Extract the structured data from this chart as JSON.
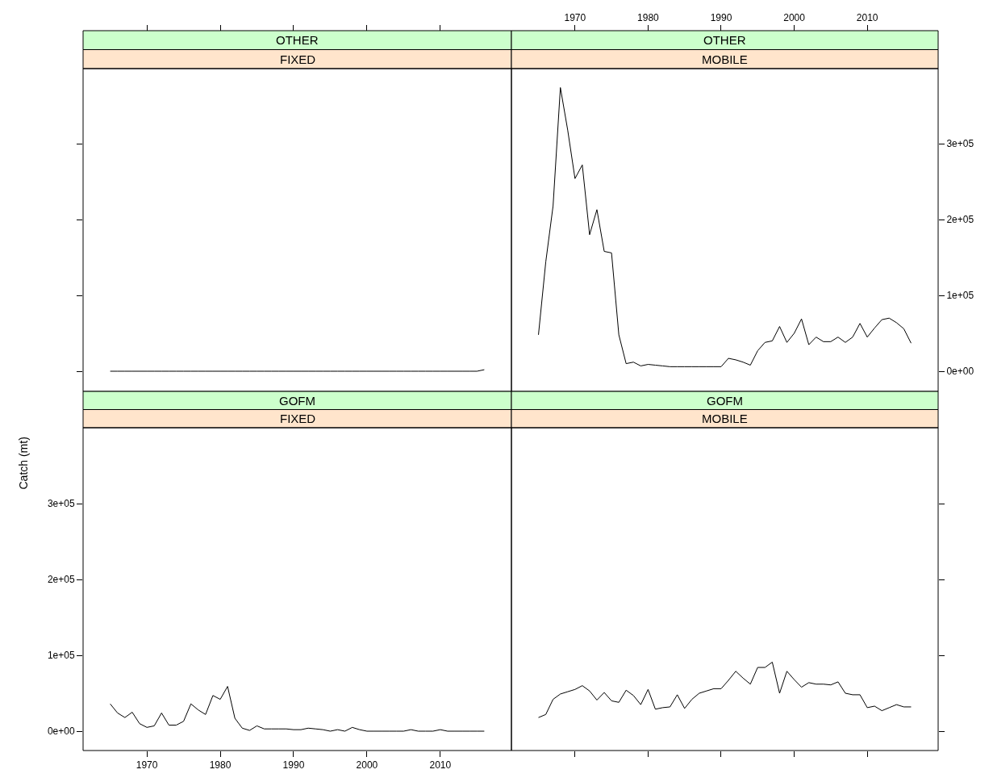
{
  "chart_data": [
    {
      "type": "line",
      "title": "OTHER",
      "subtitle": "FIXED",
      "x": [
        1965,
        1966,
        1967,
        1968,
        1969,
        1970,
        1971,
        1972,
        1973,
        1974,
        1975,
        1976,
        1977,
        1978,
        1979,
        1980,
        1981,
        1982,
        1983,
        1984,
        1985,
        1986,
        1987,
        1988,
        1989,
        1990,
        1991,
        1992,
        1993,
        1994,
        1995,
        1996,
        1997,
        1998,
        1999,
        2000,
        2001,
        2002,
        2003,
        2004,
        2005,
        2006,
        2007,
        2008,
        2009,
        2010,
        2011,
        2012,
        2013,
        2014,
        2015,
        2016
      ],
      "series": [
        {
          "color": "#000000",
          "values": [
            0,
            0,
            0,
            0,
            0,
            0,
            0,
            0,
            0,
            0,
            0,
            0,
            0,
            0,
            0,
            0,
            0,
            0,
            0,
            0,
            0,
            0,
            0,
            0,
            0,
            0,
            0,
            0,
            0,
            0,
            0,
            0,
            0,
            0,
            0,
            0,
            0,
            0,
            0,
            0,
            0,
            0,
            0,
            0,
            0,
            0,
            0,
            0,
            0,
            0,
            0,
            2000
          ]
        }
      ],
      "xlim": [
        1961.3,
        2019.7
      ],
      "ylim": [
        -26600,
        399000
      ],
      "xticks": [
        1970,
        1980,
        1990,
        2000,
        2010
      ],
      "yticks": [
        0,
        100000,
        200000,
        300000
      ],
      "tick_labels": false
    },
    {
      "type": "line",
      "title": "OTHER",
      "subtitle": "MOBILE",
      "x": [
        1965,
        1966,
        1967,
        1968,
        1969,
        1970,
        1971,
        1972,
        1973,
        1974,
        1975,
        1976,
        1977,
        1978,
        1979,
        1980,
        1981,
        1982,
        1983,
        1984,
        1985,
        1986,
        1987,
        1988,
        1989,
        1990,
        1991,
        1992,
        1993,
        1994,
        1995,
        1996,
        1997,
        1998,
        1999,
        2000,
        2001,
        2002,
        2003,
        2004,
        2005,
        2006,
        2007,
        2008,
        2009,
        2010,
        2011,
        2012,
        2013,
        2014,
        2015,
        2016
      ],
      "series": [
        {
          "color": "#000000",
          "values": [
            48000,
            144000,
            218000,
            374000,
            318000,
            254000,
            272000,
            180000,
            213000,
            158000,
            156000,
            48000,
            10000,
            12000,
            7000,
            9000,
            8000,
            7000,
            6000,
            6000,
            6000,
            6000,
            6000,
            6000,
            6000,
            6000,
            17000,
            15000,
            12000,
            8000,
            27000,
            38000,
            40000,
            59000,
            38000,
            50000,
            69000,
            35000,
            45000,
            39000,
            39000,
            45000,
            38000,
            45000,
            63000,
            45000,
            57000,
            68000,
            70000,
            64000,
            56000,
            37000
          ]
        }
      ],
      "xlim": [
        1961.3,
        2019.7
      ],
      "ylim": [
        -26600,
        399000
      ],
      "xticks": [
        1970,
        1980,
        1990,
        2000,
        2010
      ],
      "yticks": [
        {
          "value": 0,
          "label": "0e+00"
        },
        {
          "value": 100000,
          "label": "1e+05"
        },
        {
          "value": 200000,
          "label": "2e+05"
        },
        {
          "value": 300000,
          "label": "3e+05"
        }
      ]
    },
    {
      "type": "line",
      "title": "GOFM",
      "subtitle": "FIXED",
      "ylabel": "Catch (mt)",
      "x": [
        1965,
        1966,
        1967,
        1968,
        1969,
        1970,
        1971,
        1972,
        1973,
        1974,
        1975,
        1976,
        1977,
        1978,
        1979,
        1980,
        1981,
        1982,
        1983,
        1984,
        1985,
        1986,
        1987,
        1988,
        1989,
        1990,
        1991,
        1992,
        1993,
        1994,
        1995,
        1996,
        1997,
        1998,
        1999,
        2000,
        2001,
        2002,
        2003,
        2004,
        2005,
        2006,
        2007,
        2008,
        2009,
        2010,
        2011,
        2012,
        2013,
        2014,
        2015,
        2016
      ],
      "series": [
        {
          "color": "#000000",
          "values": [
            36000,
            24000,
            18000,
            25000,
            10000,
            5000,
            7000,
            24000,
            8000,
            8000,
            13000,
            36000,
            28000,
            22000,
            47000,
            42000,
            59000,
            17000,
            4000,
            1000,
            7000,
            3000,
            3000,
            3000,
            3000,
            2000,
            2000,
            4000,
            3000,
            2000,
            0,
            2000,
            0,
            5000,
            2000,
            0,
            0,
            0,
            0,
            0,
            0,
            2000,
            0,
            0,
            0,
            2000,
            0,
            0,
            0,
            0,
            0,
            0
          ]
        }
      ],
      "xlim": [
        1961.3,
        2019.7
      ],
      "ylim": [
        -25500,
        400000
      ],
      "xticks": [
        1970,
        1980,
        1990,
        2000,
        2010
      ],
      "yticks": [
        {
          "value": 0,
          "label": "0e+00"
        },
        {
          "value": 100000,
          "label": "1e+05"
        },
        {
          "value": 200000,
          "label": "2e+05"
        },
        {
          "value": 300000,
          "label": "3e+05"
        }
      ]
    },
    {
      "type": "line",
      "title": "GOFM",
      "subtitle": "MOBILE",
      "x": [
        1965,
        1966,
        1967,
        1968,
        1969,
        1970,
        1971,
        1972,
        1973,
        1974,
        1975,
        1976,
        1977,
        1978,
        1979,
        1980,
        1981,
        1982,
        1983,
        1984,
        1985,
        1986,
        1987,
        1988,
        1989,
        1990,
        1991,
        1992,
        1993,
        1994,
        1995,
        1996,
        1997,
        1998,
        1999,
        2000,
        2001,
        2002,
        2003,
        2004,
        2005,
        2006,
        2007,
        2008,
        2009,
        2010,
        2011,
        2012,
        2013,
        2014,
        2015,
        2016
      ],
      "series": [
        {
          "color": "#000000",
          "values": [
            18000,
            22000,
            42000,
            49000,
            52000,
            55000,
            60000,
            53000,
            41000,
            51000,
            40000,
            38000,
            54000,
            47000,
            35000,
            55000,
            29000,
            31000,
            32000,
            48000,
            30000,
            42000,
            50000,
            53000,
            56000,
            56000,
            67000,
            79000,
            70000,
            62000,
            84000,
            84000,
            91000,
            50000,
            79000,
            68000,
            58000,
            64000,
            62000,
            62000,
            61000,
            65000,
            50000,
            48000,
            48000,
            31000,
            33000,
            27000,
            31000,
            35000,
            32000,
            32000
          ]
        }
      ],
      "xlim": [
        1961.3,
        2019.7
      ],
      "ylim": [
        -25500,
        400000
      ],
      "xticks": [
        1970,
        1980,
        1990,
        2000,
        2010
      ],
      "yticks": [
        0,
        100000,
        200000,
        300000
      ],
      "tick_labels": false
    }
  ]
}
